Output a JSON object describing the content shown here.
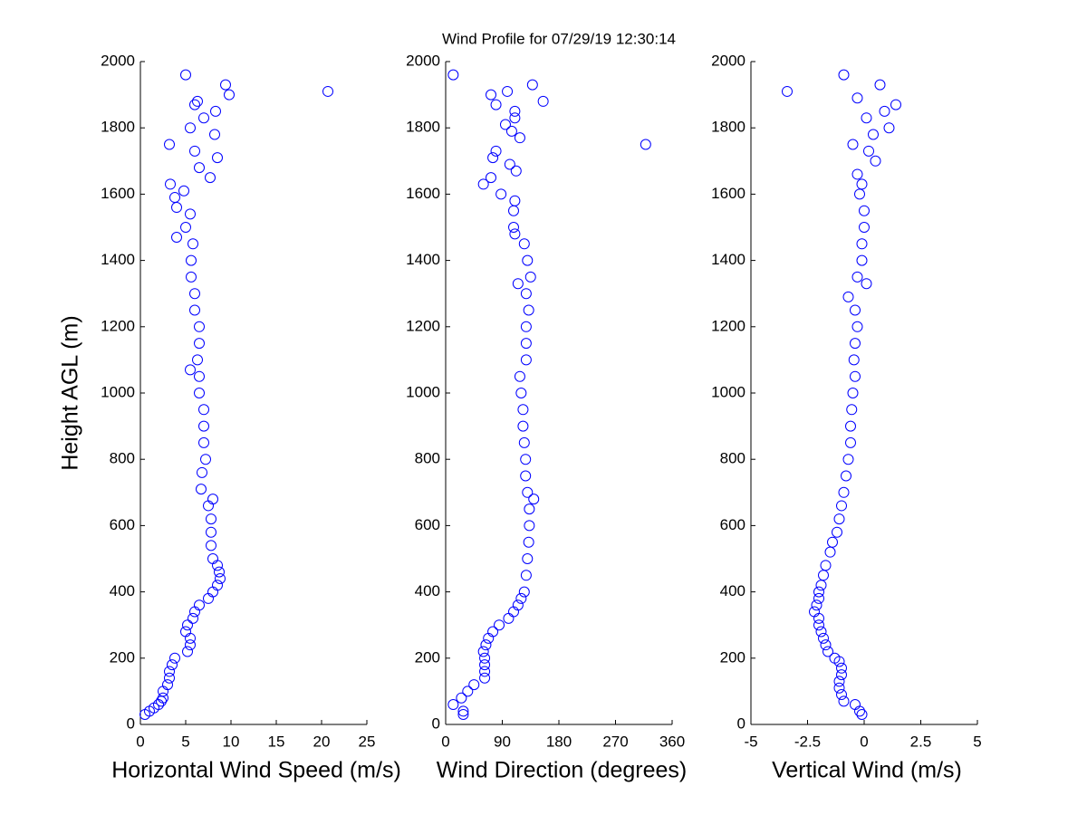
{
  "title": "Wind Profile for  07/29/19 12:30:14",
  "chart_data": [
    {
      "type": "scatter",
      "xlabel": "Horizontal Wind Speed (m/s)",
      "ylabel": "Height AGL (m)",
      "color": "#0000ff",
      "xlim": [
        0,
        25
      ],
      "xticks": [
        0,
        5,
        10,
        15,
        20,
        25
      ],
      "ylim": [
        0,
        2000
      ],
      "yticks": [
        0,
        200,
        400,
        600,
        800,
        1000,
        1200,
        1400,
        1600,
        1800,
        2000
      ],
      "x": [
        0.5,
        1,
        1.5,
        2,
        2.3,
        2.5,
        2.5,
        3,
        3.2,
        3.2,
        3.5,
        3.8,
        5.2,
        5.5,
        5.5,
        5,
        5.2,
        5.8,
        6,
        6.5,
        7.5,
        8,
        8.5,
        8.8,
        8.7,
        8.5,
        8,
        7.8,
        7.8,
        7.8,
        7.5,
        8,
        6.7,
        6.8,
        7.2,
        7,
        7,
        7,
        6.5,
        6.5,
        5.5,
        6.3,
        6.5,
        6.5,
        6,
        6,
        5.6,
        5.6,
        5.8,
        4,
        5,
        5.5,
        4,
        3.8,
        4.8,
        3.3,
        7.7,
        6.5,
        8.5,
        6,
        3.2,
        8.2,
        5.5,
        7,
        8.3,
        6,
        6.3,
        9.8,
        20.7,
        9.4,
        5
      ],
      "y": [
        30,
        40,
        50,
        60,
        70,
        80,
        100,
        120,
        140,
        160,
        180,
        200,
        220,
        240,
        260,
        280,
        300,
        320,
        340,
        360,
        380,
        400,
        420,
        440,
        460,
        480,
        500,
        540,
        580,
        620,
        660,
        680,
        710,
        760,
        800,
        850,
        900,
        950,
        1000,
        1050,
        1070,
        1100,
        1150,
        1200,
        1250,
        1300,
        1350,
        1400,
        1450,
        1470,
        1500,
        1540,
        1560,
        1590,
        1610,
        1630,
        1650,
        1680,
        1710,
        1730,
        1750,
        1780,
        1800,
        1830,
        1850,
        1870,
        1880,
        1900,
        1910,
        1930,
        1960
      ]
    },
    {
      "type": "scatter",
      "xlabel": "Wind Direction (degrees)",
      "color": "#0000ff",
      "xlim": [
        0,
        360
      ],
      "xticks": [
        0,
        90,
        180,
        270,
        360
      ],
      "ylim": [
        0,
        2000
      ],
      "yticks": [
        0,
        200,
        400,
        600,
        800,
        1000,
        1200,
        1400,
        1600,
        1800,
        2000
      ],
      "x": [
        28,
        28,
        12,
        25,
        35,
        45,
        62,
        62,
        62,
        62,
        60,
        64,
        68,
        75,
        85,
        100,
        108,
        115,
        120,
        125,
        128,
        130,
        132,
        133,
        133,
        140,
        130,
        127,
        127,
        125,
        123,
        123,
        120,
        118,
        128,
        128,
        128,
        132,
        128,
        115,
        135,
        130,
        125,
        110,
        108,
        108,
        110,
        88,
        60,
        72,
        112,
        102,
        75,
        80,
        318,
        118,
        105,
        95,
        110,
        110,
        80,
        155,
        72,
        98,
        138,
        12
      ],
      "y": [
        30,
        40,
        60,
        80,
        100,
        120,
        140,
        160,
        180,
        200,
        220,
        240,
        260,
        280,
        300,
        320,
        340,
        360,
        380,
        400,
        450,
        500,
        550,
        600,
        650,
        680,
        700,
        750,
        800,
        850,
        900,
        950,
        1000,
        1050,
        1100,
        1150,
        1200,
        1250,
        1300,
        1330,
        1350,
        1400,
        1450,
        1480,
        1500,
        1550,
        1580,
        1600,
        1630,
        1650,
        1670,
        1690,
        1710,
        1730,
        1750,
        1770,
        1790,
        1810,
        1830,
        1850,
        1870,
        1880,
        1900,
        1910,
        1930,
        1960
      ]
    },
    {
      "type": "scatter",
      "xlabel": "Vertical Wind (m/s)",
      "color": "#0000ff",
      "xlim": [
        -5,
        5
      ],
      "xticks": [
        -5,
        -2.5,
        0,
        2.5,
        5
      ],
      "ylim": [
        0,
        2000
      ],
      "yticks": [
        0,
        200,
        400,
        600,
        800,
        1000,
        1200,
        1400,
        1600,
        1800,
        2000
      ],
      "x": [
        -0.1,
        -0.2,
        -0.4,
        -0.9,
        -1.0,
        -1.1,
        -1.1,
        -1.0,
        -1.0,
        -1.1,
        -1.3,
        -1.6,
        -1.7,
        -1.8,
        -1.9,
        -2.0,
        -2.0,
        -2.2,
        -2.1,
        -2.0,
        -2.0,
        -1.9,
        -1.8,
        -1.7,
        -1.5,
        -1.4,
        -1.2,
        -1.1,
        -1.0,
        -0.9,
        -0.8,
        -0.7,
        -0.6,
        -0.6,
        -0.55,
        -0.5,
        -0.4,
        -0.45,
        -0.4,
        -0.3,
        -0.4,
        -0.7,
        0.1,
        -0.3,
        -0.1,
        -0.1,
        0.0,
        0.0,
        -0.2,
        -0.1,
        -0.3,
        0.5,
        0.2,
        -0.5,
        0.4,
        1.1,
        0.1,
        0.9,
        1.4,
        -0.3,
        -3.4,
        0.7,
        -0.9
      ],
      "y": [
        30,
        40,
        60,
        70,
        90,
        110,
        130,
        150,
        170,
        190,
        200,
        220,
        240,
        260,
        280,
        300,
        320,
        340,
        360,
        380,
        400,
        420,
        450,
        480,
        520,
        550,
        580,
        620,
        660,
        700,
        750,
        800,
        850,
        900,
        950,
        1000,
        1050,
        1100,
        1150,
        1200,
        1250,
        1290,
        1330,
        1350,
        1400,
        1450,
        1500,
        1550,
        1600,
        1630,
        1660,
        1700,
        1730,
        1750,
        1780,
        1800,
        1830,
        1850,
        1870,
        1890,
        1910,
        1930,
        1960
      ]
    }
  ]
}
